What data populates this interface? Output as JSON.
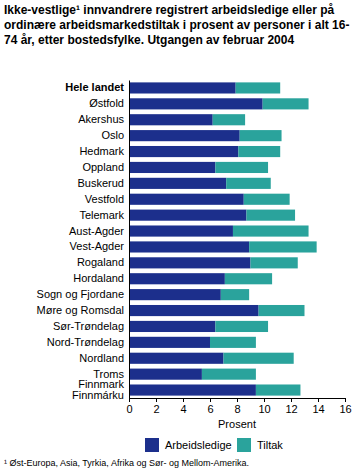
{
  "chart_data": {
    "type": "bar",
    "orientation": "horizontal",
    "stacked": true,
    "title": "Ikke-vestlige¹ innvandrere registrert arbeidsledige eller på ordinære arbeidsmarkedstiltak i prosent av personer i alt 16-74 år, etter bostedsfylke. Utgangen av februar 2004",
    "xlabel": "Prosent",
    "categories": [
      "Hele landet",
      "Østfold",
      "Akershus",
      "Oslo",
      "Hedmark",
      "Oppland",
      "Buskerud",
      "Vestfold",
      "Telemark",
      "Aust-Agder",
      "Vest-Agder",
      "Rogaland",
      "Hordaland",
      "Sogn og Fjordane",
      "Møre og Romsdal",
      "Sør-Trøndelag",
      "Nord-Trøndelag",
      "Nordland",
      "Troms",
      "Finnmark\nFinnmárku"
    ],
    "series": [
      {
        "name": "Arbeidsledige",
        "color": "#1c2f8c",
        "values": [
          7.9,
          9.9,
          6.2,
          8.2,
          8.1,
          6.4,
          7.2,
          8.5,
          8.7,
          7.7,
          8.9,
          9.0,
          7.1,
          6.8,
          9.6,
          6.4,
          6.0,
          7.0,
          5.4,
          9.4
        ]
      },
      {
        "name": "Tiltak",
        "color": "#2aa39c",
        "values": [
          3.3,
          3.4,
          2.4,
          3.1,
          3.1,
          3.9,
          3.3,
          3.4,
          3.6,
          5.6,
          5.0,
          3.5,
          3.5,
          2.1,
          3.4,
          3.9,
          3.4,
          5.2,
          4.0,
          3.3
        ]
      }
    ],
    "xlim": [
      0,
      16
    ],
    "xticks": [
      0,
      2,
      4,
      6,
      8,
      10,
      12,
      14,
      16
    ],
    "grid": false,
    "legend": "bottom",
    "annotations": [
      "¹ Øst-Europa, Asia, Tyrkia, Afrika og Sør- og Mellom-Amerika."
    ]
  }
}
